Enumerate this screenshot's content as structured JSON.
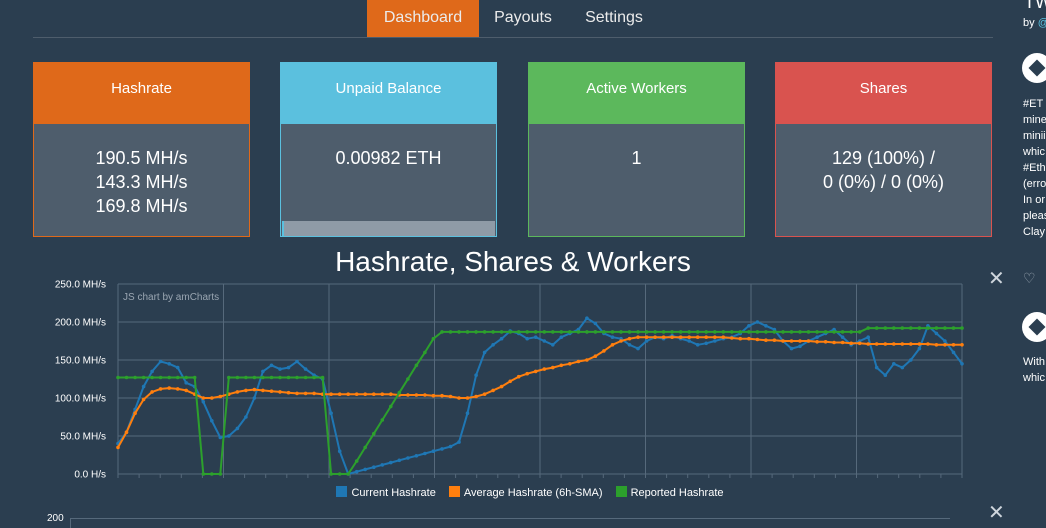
{
  "nav": {
    "tabs": [
      {
        "label": "Dashboard",
        "active": true
      },
      {
        "label": "Payouts",
        "active": false
      },
      {
        "label": "Settings",
        "active": false
      }
    ]
  },
  "panels": {
    "hashrate": {
      "title": "Hashrate",
      "lines": [
        "190.5 MH/s",
        "143.3 MH/s",
        "169.8 MH/s"
      ],
      "color": "#df691a"
    },
    "unpaid": {
      "title": "Unpaid Balance",
      "value": "0.00982 ETH",
      "progress": 0.01,
      "color": "#5bc0de"
    },
    "workers": {
      "title": "Active Workers",
      "value": "1",
      "color": "#5cb85c"
    },
    "shares": {
      "title": "Shares",
      "lines": [
        "129 (100%) /",
        "0 (0%) / 0 (0%)"
      ],
      "color": "#d9534f"
    }
  },
  "chart_title": "Hashrate, Shares & Workers",
  "chart_credit": "JS chart by amCharts",
  "chart_data": {
    "type": "line",
    "title": "Hashrate, Shares & Workers",
    "ylim": [
      0,
      250
    ],
    "y_ticks": [
      "250.0 MH/s",
      "200.0 MH/s",
      "150.0 MH/s",
      "100.0 MH/s",
      "50.0 MH/s",
      "0.0 H/s"
    ],
    "y_tick_values": [
      250,
      200,
      150,
      100,
      50,
      0
    ],
    "x_count": 100,
    "grid": true,
    "legend_position": "bottom",
    "series": [
      {
        "name": "Current Hashrate",
        "color": "#1f77b4",
        "x": [
          0,
          1,
          2,
          3,
          4,
          5,
          6,
          7,
          8,
          9,
          10,
          11,
          12,
          13,
          14,
          15,
          16,
          17,
          18,
          19,
          20,
          21,
          22,
          23,
          24,
          25,
          26,
          27,
          28,
          29,
          30,
          31,
          32,
          33,
          34,
          35,
          36,
          37,
          38,
          39,
          40,
          41,
          42,
          43,
          44,
          45,
          46,
          47,
          48,
          49,
          50,
          51,
          52,
          53,
          54,
          55,
          56,
          57,
          58,
          59,
          60,
          61,
          62,
          63,
          64,
          65,
          66,
          67,
          68,
          69,
          70,
          71,
          72,
          73,
          74,
          75,
          76,
          77,
          78,
          79,
          80,
          81,
          82,
          83,
          84,
          85,
          86,
          87,
          88,
          89,
          90,
          91,
          92,
          93,
          94,
          95,
          96,
          97,
          98,
          99
        ],
        "values": [
          40,
          55,
          85,
          115,
          135,
          148,
          145,
          140,
          120,
          115,
          95,
          70,
          48,
          50,
          60,
          75,
          100,
          135,
          143,
          138,
          140,
          148,
          138,
          130,
          125,
          80,
          30,
          0,
          3,
          6,
          9,
          12,
          15,
          18,
          21,
          24,
          27,
          30,
          33,
          36,
          42,
          80,
          130,
          160,
          170,
          178,
          188,
          185,
          178,
          180,
          175,
          170,
          180,
          185,
          190,
          205,
          198,
          185,
          180,
          178,
          170,
          165,
          175,
          180,
          178,
          182,
          178,
          175,
          170,
          172,
          175,
          178,
          180,
          185,
          195,
          200,
          195,
          190,
          175,
          165,
          168,
          175,
          180,
          185,
          190,
          180,
          170,
          175,
          180,
          140,
          130,
          145,
          140,
          150,
          165,
          195,
          185,
          175,
          160,
          145
        ]
      },
      {
        "name": "Average Hashrate (6h-SMA)",
        "color": "#ff7f0e",
        "x": [
          0,
          1,
          2,
          3,
          4,
          5,
          6,
          7,
          8,
          9,
          10,
          11,
          12,
          13,
          14,
          15,
          16,
          17,
          18,
          19,
          20,
          21,
          22,
          23,
          24,
          25,
          26,
          27,
          28,
          29,
          30,
          31,
          32,
          33,
          34,
          35,
          36,
          37,
          38,
          39,
          40,
          41,
          42,
          43,
          44,
          45,
          46,
          47,
          48,
          49,
          50,
          51,
          52,
          53,
          54,
          55,
          56,
          57,
          58,
          59,
          60,
          61,
          62,
          63,
          64,
          65,
          66,
          67,
          68,
          69,
          70,
          71,
          72,
          73,
          74,
          75,
          76,
          77,
          78,
          79,
          80,
          81,
          82,
          83,
          84,
          85,
          86,
          87,
          88,
          89,
          90,
          91,
          92,
          93,
          94,
          95,
          96,
          97,
          98,
          99
        ],
        "values": [
          35,
          55,
          80,
          98,
          108,
          112,
          113,
          112,
          110,
          105,
          100,
          100,
          102,
          105,
          108,
          110,
          111,
          110,
          109,
          108,
          107,
          106,
          106,
          106,
          105,
          105,
          105,
          105,
          105,
          105,
          105,
          105,
          105,
          104,
          104,
          104,
          104,
          103,
          103,
          102,
          100,
          100,
          102,
          105,
          110,
          115,
          122,
          128,
          132,
          135,
          138,
          140,
          143,
          145,
          148,
          150,
          155,
          162,
          170,
          175,
          178,
          180,
          180,
          180,
          180,
          180,
          180,
          180,
          180,
          180,
          180,
          180,
          179,
          178,
          178,
          177,
          176,
          176,
          175,
          175,
          175,
          175,
          174,
          174,
          173,
          173,
          172,
          172,
          171,
          171,
          171,
          171,
          171,
          171,
          171,
          171,
          170,
          170,
          170,
          170
        ]
      },
      {
        "name": "Reported Hashrate",
        "color": "#2ca02c",
        "x": [
          0,
          1,
          2,
          3,
          4,
          5,
          6,
          7,
          8,
          9,
          10,
          11,
          12,
          13,
          14,
          15,
          16,
          17,
          18,
          19,
          20,
          21,
          22,
          23,
          24,
          25,
          26,
          27,
          28,
          29,
          30,
          31,
          32,
          33,
          34,
          35,
          36,
          37,
          38,
          39,
          40,
          41,
          42,
          43,
          44,
          45,
          46,
          47,
          48,
          49,
          50,
          51,
          52,
          53,
          54,
          55,
          56,
          57,
          58,
          59,
          60,
          61,
          62,
          63,
          64,
          65,
          66,
          67,
          68,
          69,
          70,
          71,
          72,
          73,
          74,
          75,
          76,
          77,
          78,
          79,
          80,
          81,
          82,
          83,
          84,
          85,
          86,
          87,
          88,
          89,
          90,
          91,
          92,
          93,
          94,
          95,
          96,
          97,
          98,
          99
        ],
        "values": [
          127,
          127,
          127,
          127,
          127,
          127,
          127,
          127,
          127,
          127,
          0,
          0,
          0,
          127,
          127,
          127,
          127,
          127,
          127,
          127,
          127,
          127,
          127,
          127,
          127,
          0,
          0,
          0,
          17,
          35,
          53,
          71,
          89,
          107,
          125,
          143,
          160,
          178,
          187,
          187,
          187,
          187,
          187,
          187,
          187,
          187,
          187,
          187,
          187,
          187,
          187,
          187,
          187,
          187,
          187,
          187,
          187,
          187,
          187,
          187,
          187,
          187,
          187,
          187,
          187,
          187,
          187,
          187,
          187,
          187,
          187,
          187,
          187,
          187,
          187,
          187,
          187,
          187,
          187,
          187,
          187,
          187,
          187,
          187,
          187,
          187,
          187,
          187,
          192,
          192,
          192,
          192,
          192,
          192,
          192,
          192,
          192,
          192,
          192,
          192
        ]
      }
    ]
  },
  "chart2": {
    "top_tick": "200"
  },
  "sidebar": {
    "title": "TW",
    "by_prefix": "by",
    "by_handle": "@",
    "lines": [
      "#ET",
      "mine",
      "minii",
      "whic",
      "#Eth",
      "(erro",
      "In or",
      "pleas",
      "Clay"
    ],
    "lines2": [
      "With",
      "whic"
    ]
  }
}
